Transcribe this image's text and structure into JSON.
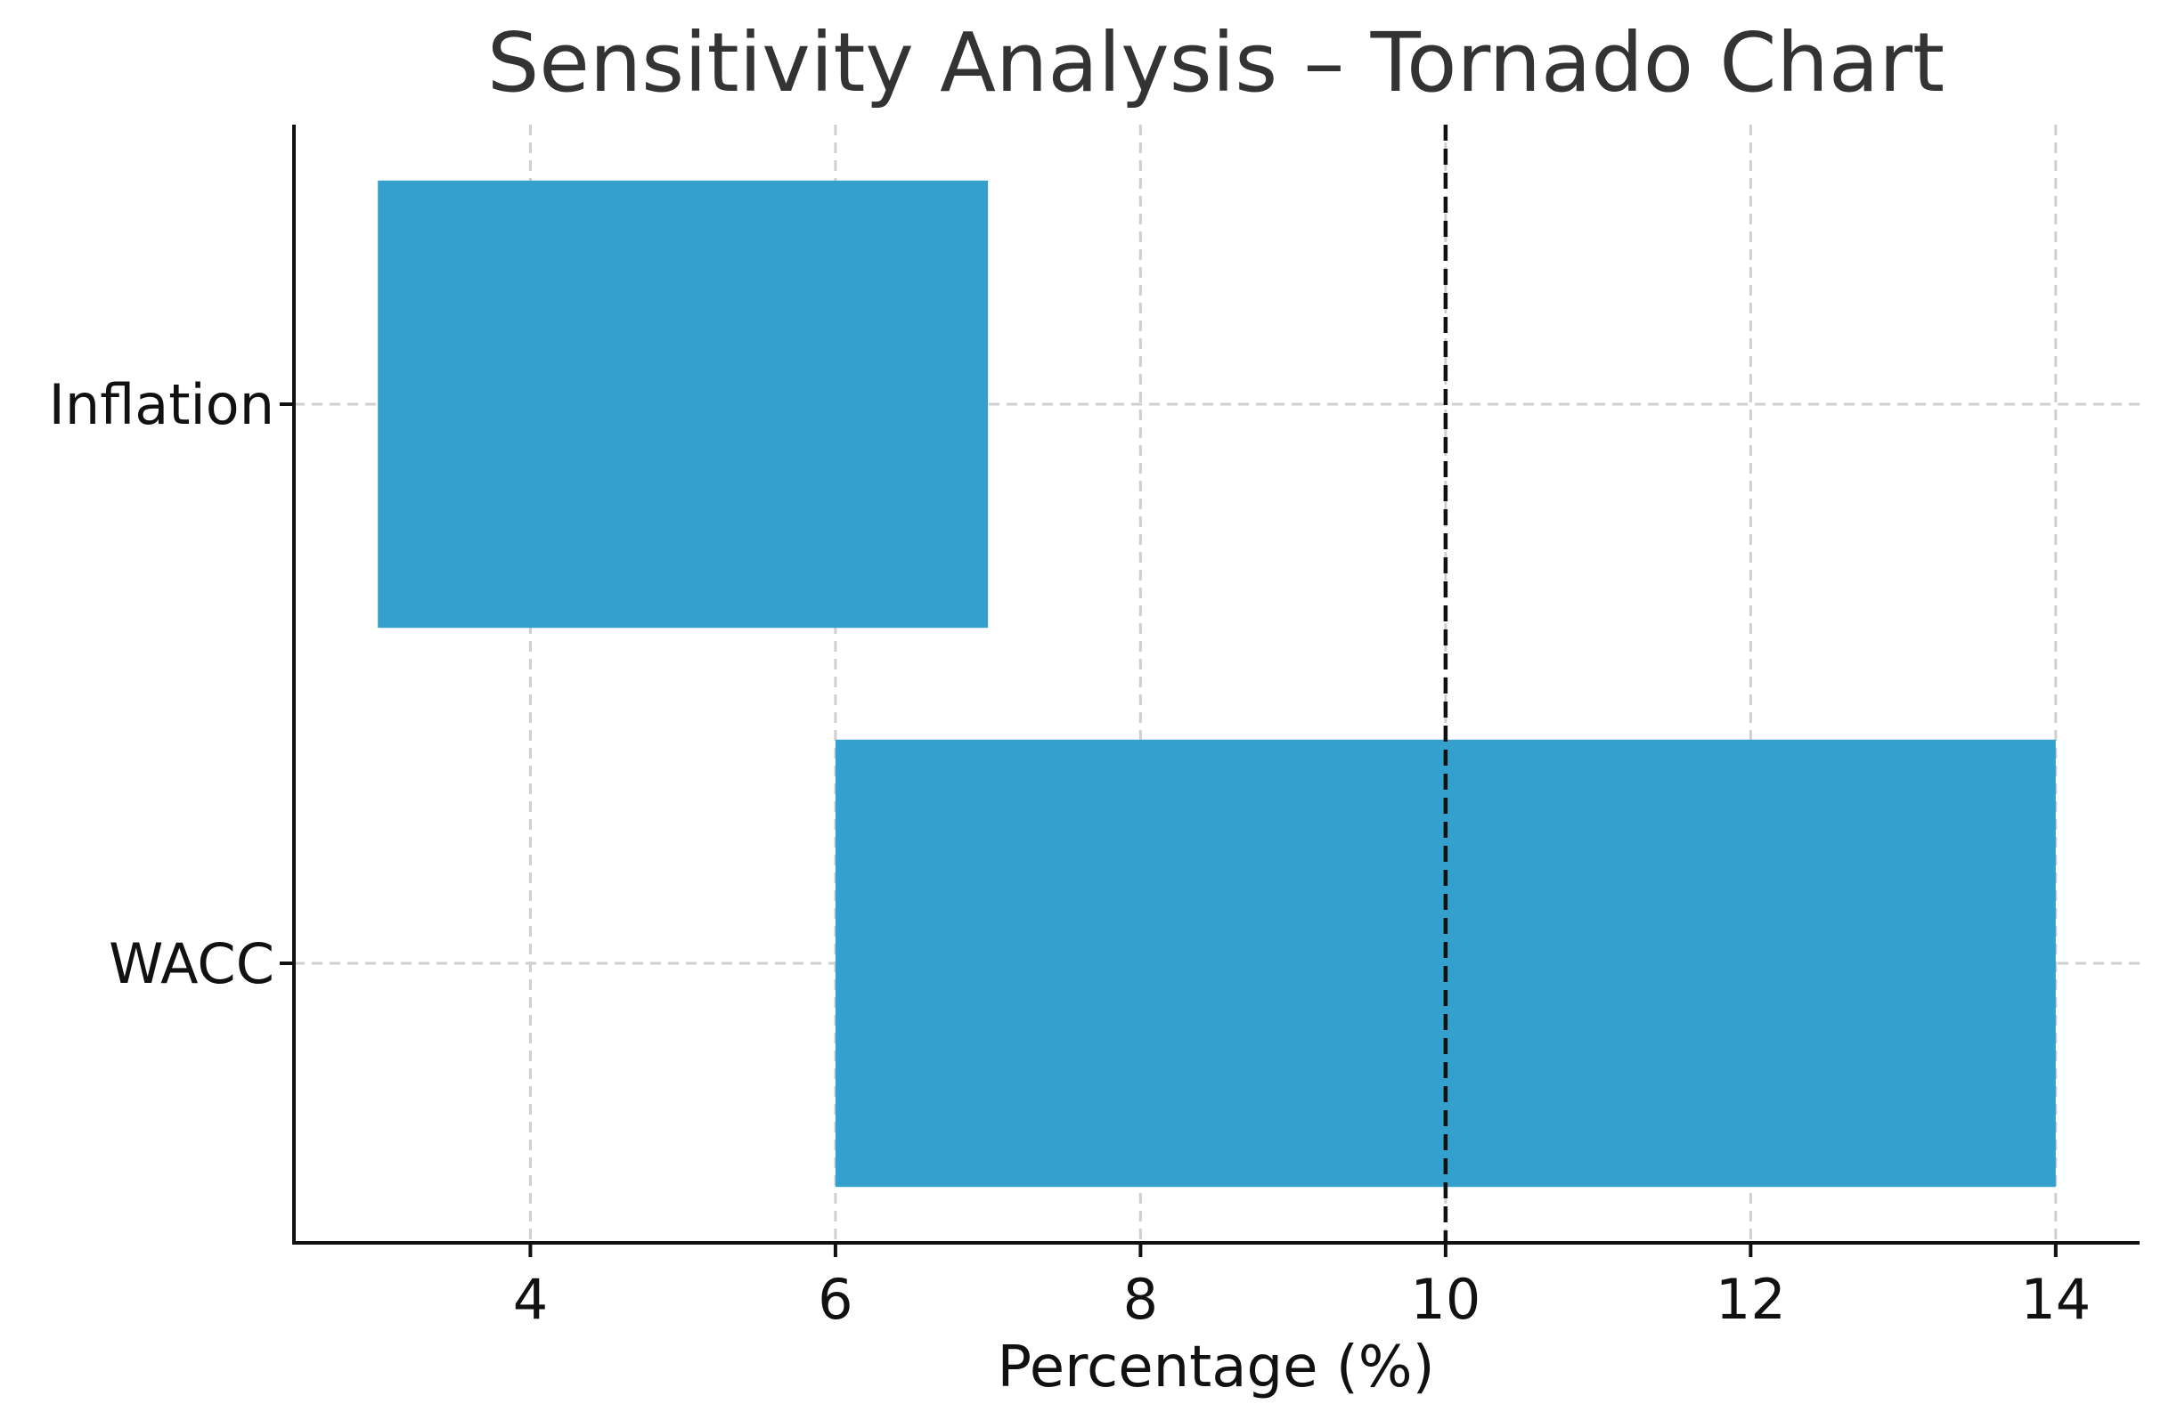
{
  "chart_data": {
    "type": "bar",
    "orientation": "horizontal",
    "title": "Sensitivity Analysis – Tornado Chart",
    "xlabel": "Percentage (%)",
    "ylabel": "",
    "categories": [
      "Inflation",
      "WACC"
    ],
    "ranges": [
      {
        "name": "Inflation",
        "low": 3,
        "high": 7
      },
      {
        "name": "WACC",
        "low": 6,
        "high": 14
      }
    ],
    "xlim": [
      2.45,
      14.55
    ],
    "xticks": [
      4,
      6,
      8,
      10,
      12,
      14
    ],
    "reference_line": {
      "value": 10,
      "style": "dashed"
    },
    "grid": true,
    "bar_color": "#33a0cd"
  }
}
